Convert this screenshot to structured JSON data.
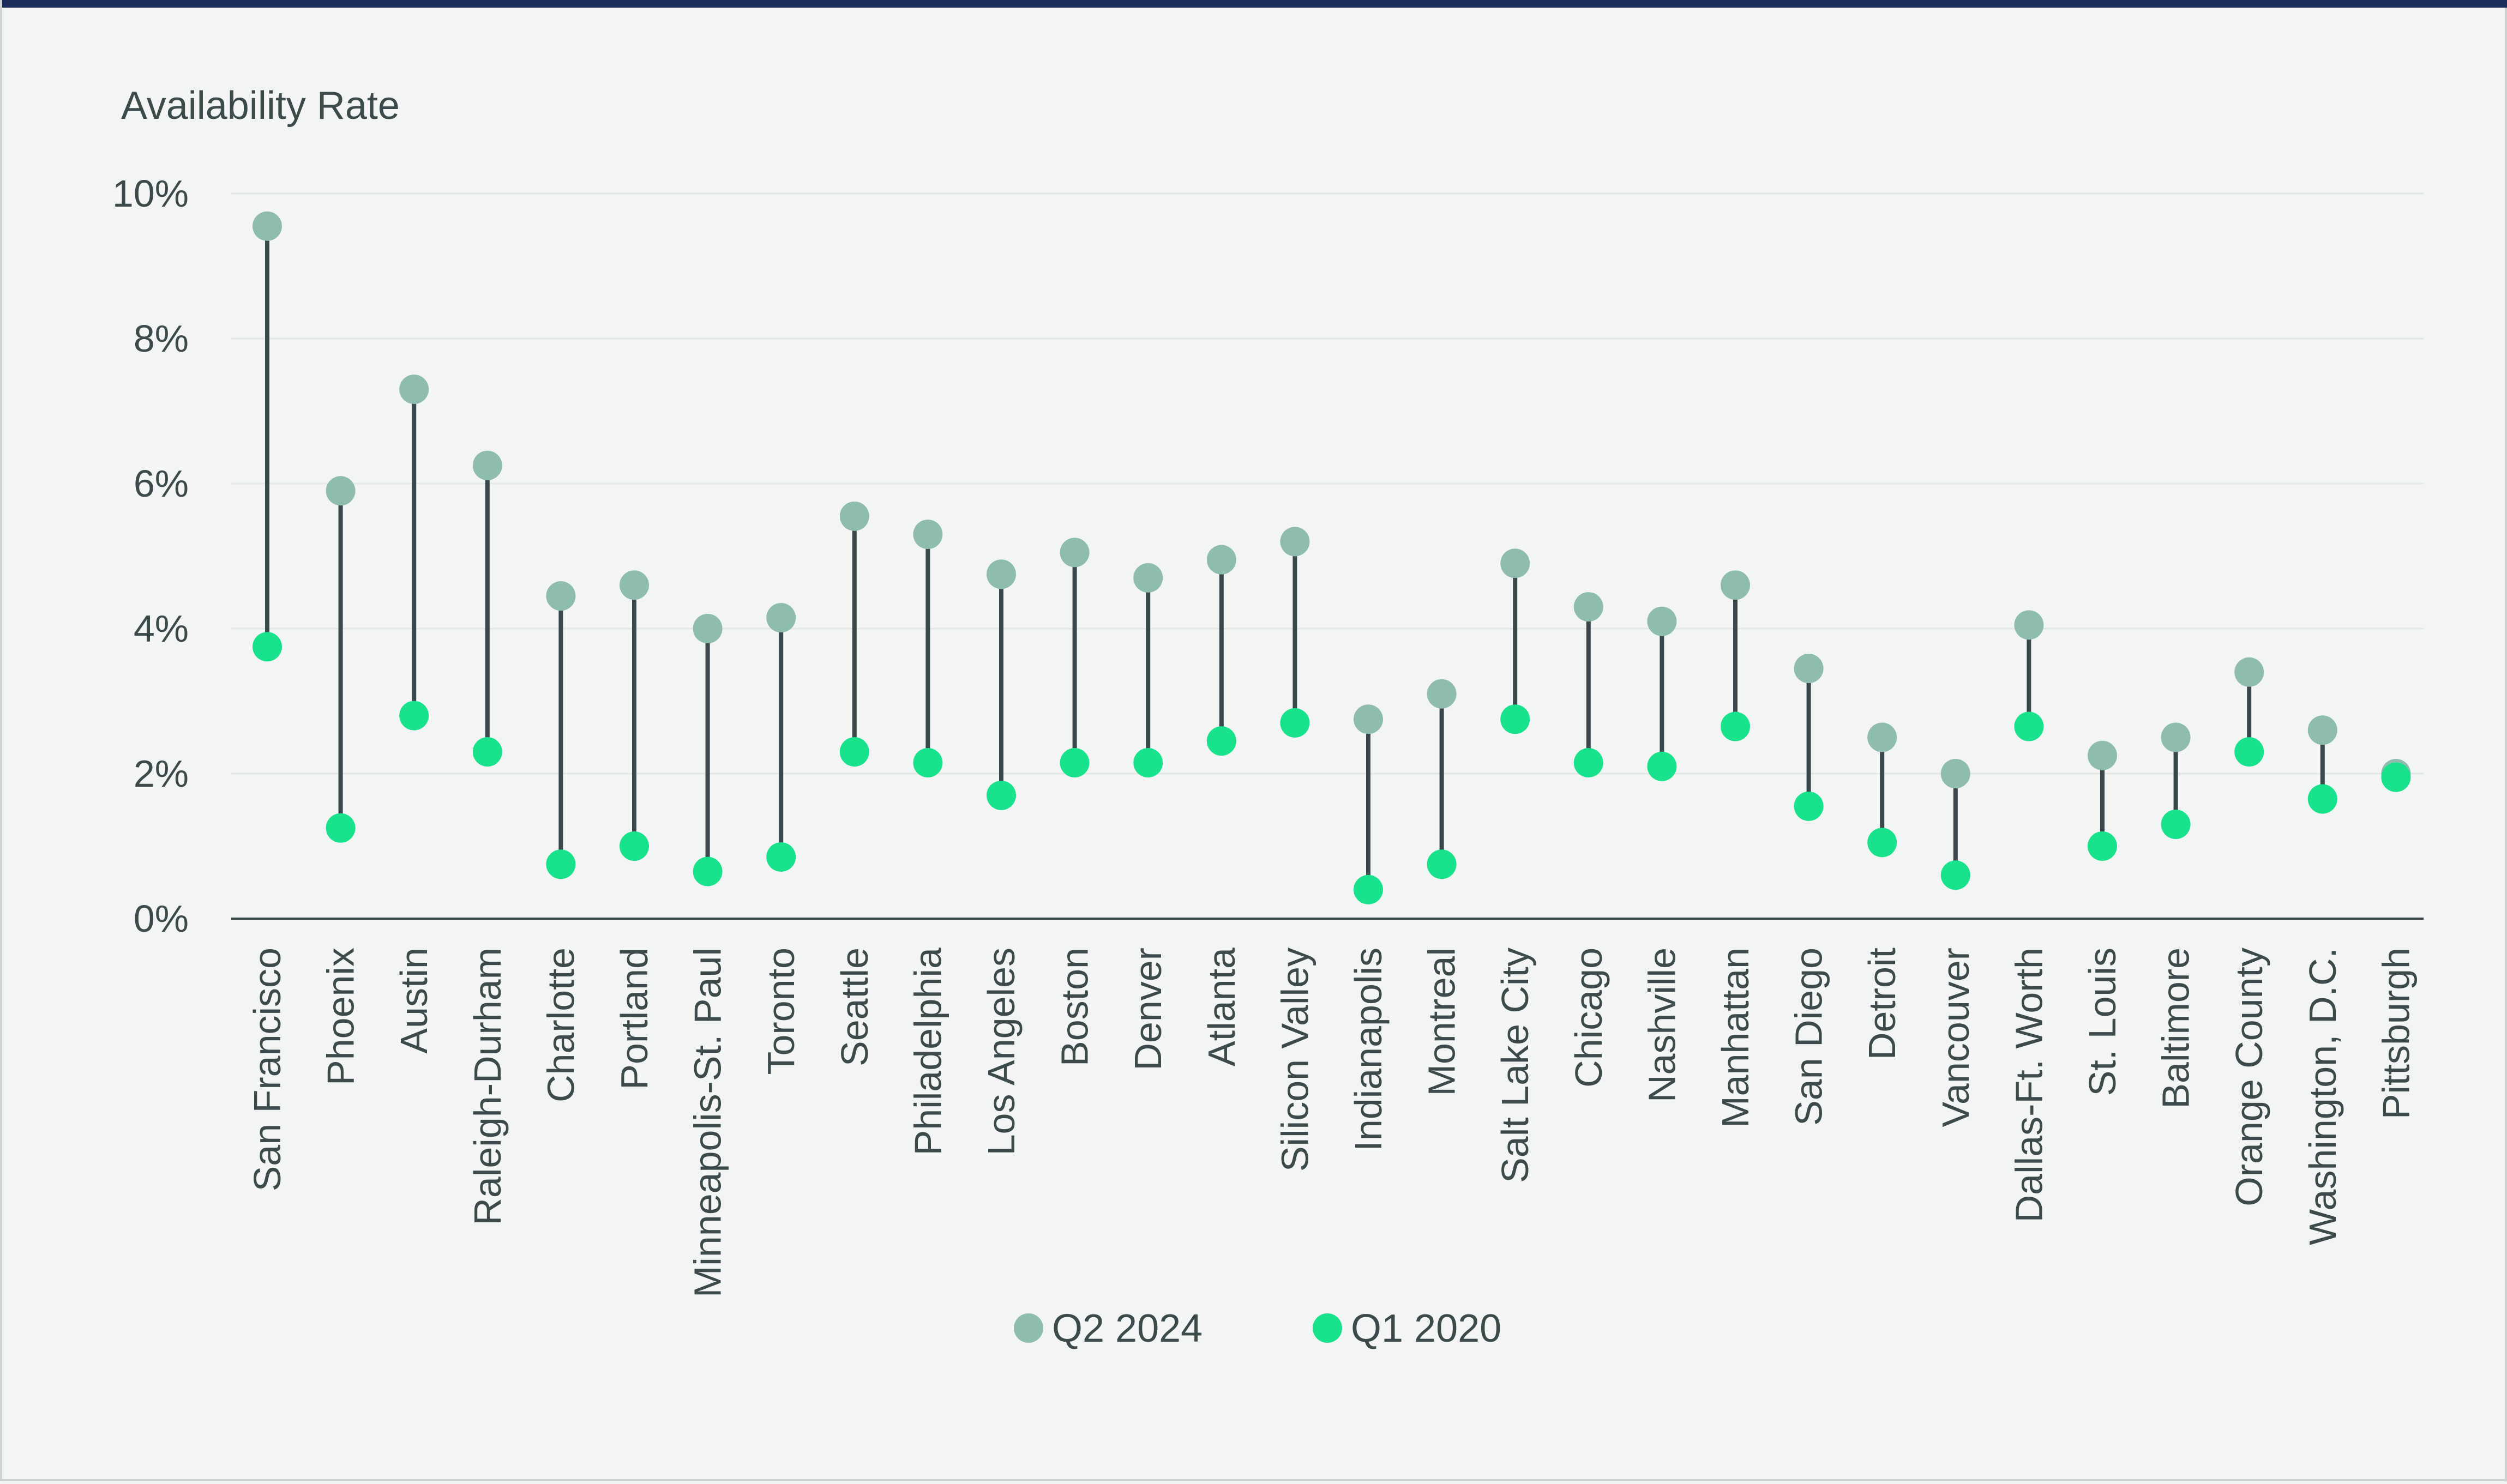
{
  "colors": {
    "q2_2024": "#8ebcae",
    "q1_2020": "#19e28c",
    "stem": "#3a474b",
    "grid": "#e3e7e6",
    "axis": "#3a474b",
    "frame_top": "#1c2e5c"
  },
  "chart_data": {
    "type": "dumbbell",
    "ylabel": "Availability Rate",
    "ylim": [
      0,
      10
    ],
    "yticks": [
      0,
      2,
      4,
      6,
      8,
      10
    ],
    "ytick_labels": [
      "0%",
      "2%",
      "4%",
      "6%",
      "8%",
      "10%"
    ],
    "grid": true,
    "legend_position": "bottom-center",
    "categories": [
      "San Francisco",
      "Phoenix",
      "Austin",
      "Raleigh-Durham",
      "Charlotte",
      "Portland",
      "Minneapolis-St. Paul",
      "Toronto",
      "Seattle",
      "Philadelphia",
      "Los Angeles",
      "Boston",
      "Denver",
      "Atlanta",
      "Silicon Valley",
      "Indianapolis",
      "Montreal",
      "Salt Lake City",
      "Chicago",
      "Nashville",
      "Manhattan",
      "San Diego",
      "Detroit",
      "Vancouver",
      "Dallas-Ft. Worth",
      "St. Louis",
      "Baltimore",
      "Orange County",
      "Washington, D.C.",
      "Pittsburgh"
    ],
    "series": [
      {
        "name": "Q2 2024",
        "color_key": "q2_2024",
        "values": [
          9.55,
          5.9,
          7.3,
          6.25,
          4.45,
          4.6,
          4.0,
          4.15,
          5.55,
          5.3,
          4.75,
          5.05,
          4.7,
          4.95,
          5.2,
          2.75,
          3.1,
          4.9,
          4.3,
          4.1,
          4.6,
          3.45,
          2.5,
          2.0,
          4.05,
          2.25,
          2.5,
          3.4,
          2.6,
          2.0
        ]
      },
      {
        "name": "Q1 2020",
        "color_key": "q1_2020",
        "values": [
          3.75,
          1.25,
          2.8,
          2.3,
          0.75,
          1.0,
          0.65,
          0.85,
          2.3,
          2.15,
          1.7,
          2.15,
          2.15,
          2.45,
          2.7,
          0.4,
          0.75,
          2.75,
          2.15,
          2.1,
          2.65,
          1.55,
          1.05,
          0.6,
          2.65,
          1.0,
          1.3,
          2.3,
          1.65,
          1.95
        ]
      }
    ]
  }
}
